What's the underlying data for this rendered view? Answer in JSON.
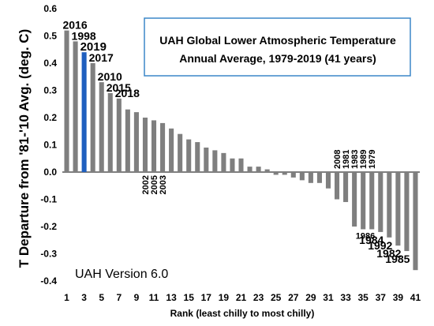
{
  "chart_data": {
    "type": "bar",
    "title_line1": "UAH Global Lower Atmospheric Temperature",
    "title_line2": "Annual Average, 1979-2019 (41 years)",
    "xlabel": "Rank (least chilly to most chilly)",
    "ylabel": "T Departure from '81-'10 Avg. (deg. C)",
    "note": "UAH Version 6.0",
    "ylim": [
      -0.4,
      0.6
    ],
    "yticks": [
      "0.6",
      "0.5",
      "0.4",
      "0.3",
      "0.2",
      "0.1",
      "0.0",
      "-0.1",
      "-0.2",
      "-0.3",
      "-0.4"
    ],
    "xticks": [
      "1",
      "3",
      "5",
      "7",
      "9",
      "11",
      "13",
      "15",
      "17",
      "19",
      "21",
      "23",
      "25",
      "27",
      "29",
      "31",
      "33",
      "35",
      "37",
      "39",
      "41"
    ],
    "categories": [
      1,
      2,
      3,
      4,
      5,
      6,
      7,
      8,
      9,
      10,
      11,
      12,
      13,
      14,
      15,
      16,
      17,
      18,
      19,
      20,
      21,
      22,
      23,
      24,
      25,
      26,
      27,
      28,
      29,
      30,
      31,
      32,
      33,
      34,
      35,
      36,
      37,
      38,
      39,
      40,
      41
    ],
    "values": [
      0.52,
      0.48,
      0.44,
      0.4,
      0.33,
      0.29,
      0.27,
      0.23,
      0.22,
      0.2,
      0.19,
      0.18,
      0.16,
      0.14,
      0.12,
      0.11,
      0.09,
      0.08,
      0.07,
      0.05,
      0.05,
      0.02,
      0.02,
      0.01,
      -0.01,
      -0.01,
      -0.02,
      -0.03,
      -0.04,
      -0.04,
      -0.06,
      -0.1,
      -0.11,
      -0.2,
      -0.21,
      -0.21,
      -0.22,
      -0.24,
      -0.27,
      -0.29,
      -0.36
    ],
    "colors": {
      "bar": "#7f7f7f",
      "highlight": "#1f5fbf",
      "box_border": "#3b87c8"
    },
    "highlight_index": 2,
    "labels": [
      {
        "text": "2016",
        "rank": 1,
        "orient": "h"
      },
      {
        "text": "1998",
        "rank": 2,
        "orient": "h"
      },
      {
        "text": "2019",
        "rank": 3,
        "orient": "h",
        "highlight": true
      },
      {
        "text": "2017",
        "rank": 4,
        "orient": "h"
      },
      {
        "text": "2010",
        "rank": 5,
        "orient": "h"
      },
      {
        "text": "2015",
        "rank": 6,
        "orient": "h"
      },
      {
        "text": "2018",
        "rank": 7,
        "orient": "h"
      },
      {
        "text": "2002",
        "rank": 10,
        "orient": "v-below"
      },
      {
        "text": "2005",
        "rank": 11,
        "orient": "v-below"
      },
      {
        "text": "2003",
        "rank": 12,
        "orient": "v-below"
      },
      {
        "text": "2008",
        "rank": 32,
        "orient": "v-above"
      },
      {
        "text": "1981",
        "rank": 33,
        "orient": "v-above"
      },
      {
        "text": "1983",
        "rank": 34,
        "orient": "v-above"
      },
      {
        "text": "1989",
        "rank": 35,
        "orient": "v-above"
      },
      {
        "text": "1979",
        "rank": 36,
        "orient": "v-above"
      },
      {
        "text": "1986",
        "rank": 36,
        "orient": "h-below"
      },
      {
        "text": "1984",
        "rank": 37,
        "orient": "h-below"
      },
      {
        "text": "1992",
        "rank": 38,
        "orient": "h-below"
      },
      {
        "text": "1982",
        "rank": 39,
        "orient": "h-below"
      },
      {
        "text": "1985",
        "rank": 40,
        "orient": "h-below"
      }
    ]
  }
}
